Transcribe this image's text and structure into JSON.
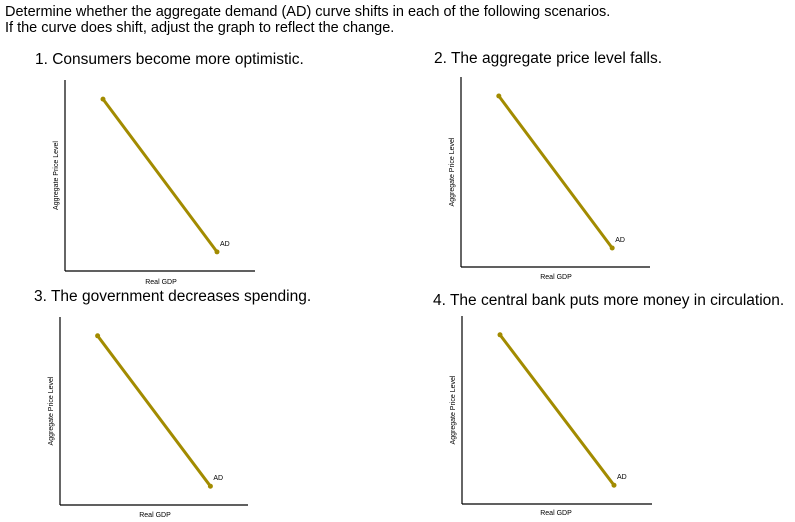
{
  "instructions": {
    "line1": "Determine whether the aggregate demand (AD) curve shifts in each of the following scenarios.",
    "line2": "If the curve does shift, adjust the graph to reflect the change."
  },
  "questions": [
    {
      "title": "1. Consumers become more optimistic."
    },
    {
      "title": "2. The aggregate price level falls."
    },
    {
      "title": "3. The government decreases spending."
    },
    {
      "title": "4. The central bank puts more money in circulation."
    }
  ],
  "line_color": "#A28B00",
  "chart_data": [
    {
      "type": "line",
      "xlabel": "Real GDP",
      "ylabel": "Aggregate Price Level",
      "series": [
        {
          "name": "AD",
          "x": [
            0.2,
            0.8
          ],
          "y": [
            0.9,
            0.1
          ]
        }
      ],
      "xlim": [
        0,
        1
      ],
      "ylim": [
        0,
        1
      ],
      "grid": false
    },
    {
      "type": "line",
      "xlabel": "Real GDP",
      "ylabel": "Aggregate Price Level",
      "series": [
        {
          "name": "AD",
          "x": [
            0.2,
            0.8
          ],
          "y": [
            0.9,
            0.1
          ]
        }
      ],
      "xlim": [
        0,
        1
      ],
      "ylim": [
        0,
        1
      ],
      "grid": false
    },
    {
      "type": "line",
      "xlabel": "Real GDP",
      "ylabel": "Aggregate Price Level",
      "series": [
        {
          "name": "AD",
          "x": [
            0.2,
            0.8
          ],
          "y": [
            0.9,
            0.1
          ]
        }
      ],
      "xlim": [
        0,
        1
      ],
      "ylim": [
        0,
        1
      ],
      "grid": false
    },
    {
      "type": "line",
      "xlabel": "Real GDP",
      "ylabel": "Aggregate Price Level",
      "series": [
        {
          "name": "AD",
          "x": [
            0.2,
            0.8
          ],
          "y": [
            0.9,
            0.1
          ]
        }
      ],
      "xlim": [
        0,
        1
      ],
      "ylim": [
        0,
        1
      ],
      "grid": false
    }
  ]
}
